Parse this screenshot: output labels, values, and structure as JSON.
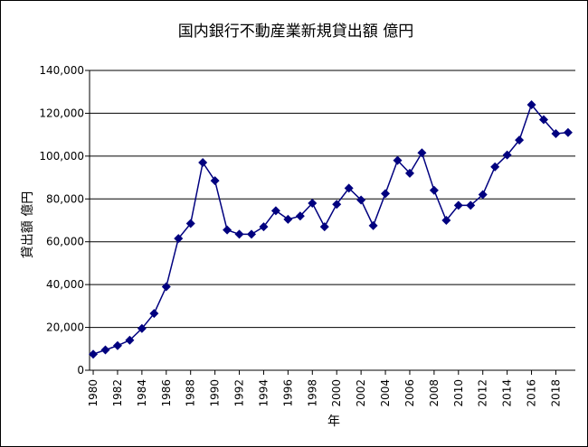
{
  "chart_data": {
    "type": "line",
    "title": "国内銀行不動産業新規貸出額 億円",
    "xlabel": "年",
    "ylabel": "貸出額 億円",
    "ylim": [
      0,
      140000
    ],
    "yticks": [
      "0",
      "20,000",
      "40,000",
      "60,000",
      "80,000",
      "100,000",
      "120,000",
      "140,000"
    ],
    "ytick_values": [
      0,
      20000,
      40000,
      60000,
      80000,
      100000,
      120000,
      140000
    ],
    "xticks": [
      "1980",
      "1982",
      "1984",
      "1986",
      "1988",
      "1990",
      "1992",
      "1994",
      "1996",
      "1998",
      "2000",
      "2002",
      "2004",
      "2006",
      "2008",
      "2010",
      "2012",
      "2014",
      "2016",
      "2018"
    ],
    "xtick_values": [
      1980,
      1982,
      1984,
      1986,
      1988,
      1990,
      1992,
      1994,
      1996,
      1998,
      2000,
      2002,
      2004,
      2006,
      2008,
      2010,
      2012,
      2014,
      2016,
      2018
    ],
    "xlim": [
      1979.7,
      2019.6
    ],
    "grid": "horizontal",
    "series_color": "#00007f",
    "x": [
      1980,
      1981,
      1982,
      1983,
      1984,
      1985,
      1986,
      1987,
      1988,
      1989,
      1990,
      1991,
      1992,
      1993,
      1994,
      1995,
      1996,
      1997,
      1998,
      1999,
      2000,
      2001,
      2002,
      2003,
      2004,
      2005,
      2006,
      2007,
      2008,
      2009,
      2010,
      2011,
      2012,
      2013,
      2014,
      2015,
      2016,
      2017,
      2018,
      2019
    ],
    "values": [
      7500,
      9500,
      11500,
      14000,
      19500,
      26500,
      39000,
      61500,
      68500,
      97000,
      88500,
      65500,
      63500,
      63500,
      67000,
      74500,
      70500,
      72000,
      78000,
      67000,
      77500,
      85000,
      79500,
      67500,
      82500,
      98000,
      92000,
      101500,
      84000,
      70000,
      77000,
      77000,
      82000,
      95000,
      100500,
      107500,
      124000,
      117000,
      110500,
      111000
    ]
  }
}
